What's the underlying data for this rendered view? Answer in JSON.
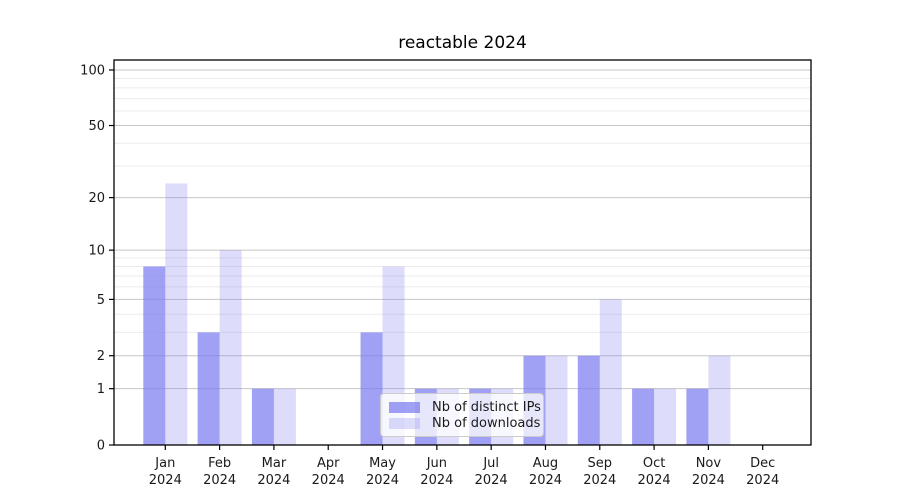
{
  "title": "reactable 2024",
  "chart_data": {
    "type": "bar",
    "title": "reactable 2024",
    "xlabel": "",
    "ylabel": "",
    "yscale": "log1p",
    "ylim": [
      0,
      100
    ],
    "grid": true,
    "legend_position": "lower center",
    "categories": [
      "Jan 2024",
      "Feb 2024",
      "Mar 2024",
      "Apr 2024",
      "May 2024",
      "Jun 2024",
      "Jul 2024",
      "Aug 2024",
      "Sep 2024",
      "Oct 2024",
      "Nov 2024",
      "Dec 2024"
    ],
    "series": [
      {
        "name": "Nb of distinct IPs",
        "values": [
          8,
          3,
          1,
          0,
          3,
          1,
          1,
          2,
          2,
          1,
          1,
          0
        ],
        "color": "rgba(124, 124, 240, 0.72)"
      },
      {
        "name": "Nb of downloads",
        "values": [
          24,
          10,
          1,
          0,
          8,
          1,
          1,
          2,
          5,
          1,
          2,
          0
        ],
        "color": "rgba(124, 124, 240, 0.26)"
      }
    ],
    "y_major_ticks": [
      0,
      1,
      2,
      5,
      10,
      20,
      50,
      100
    ],
    "y_minor_ticks": [
      3,
      4,
      6,
      7,
      8,
      9,
      30,
      40,
      60,
      70,
      80,
      90
    ]
  },
  "colors": {
    "major_grid": "#c6c6c6",
    "minor_grid": "#ebebeb",
    "spine": "#000000",
    "tick_label": "#1a1a1a"
  }
}
